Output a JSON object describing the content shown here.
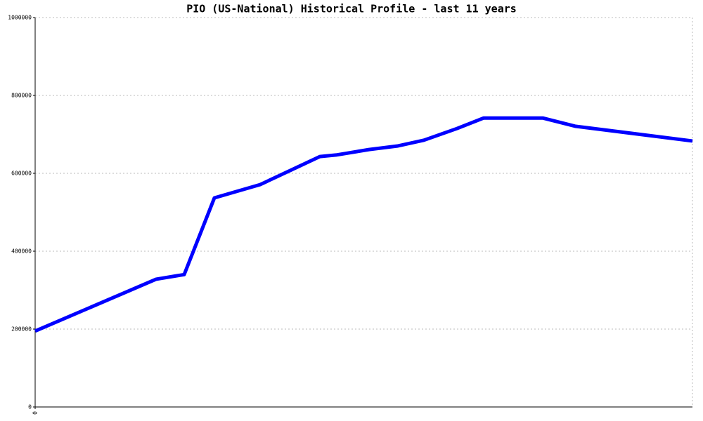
{
  "chart_data": {
    "type": "line",
    "title": "PIO (US-National) Historical Profile - last 11 years",
    "x": [
      0,
      172,
      212,
      255,
      320,
      405,
      428,
      475,
      515,
      553,
      600,
      638,
      722,
      768,
      935
    ],
    "series": [
      {
        "color": "#0000ff",
        "values": [
          195000,
          328000,
          340000,
          537000,
          571000,
          643000,
          647000,
          661000,
          670000,
          685000,
          715000,
          742000,
          742000,
          721000,
          683000
        ]
      }
    ],
    "xlim": [
      0,
      935
    ],
    "xticks": [
      0
    ],
    "ylim": [
      0,
      1000000
    ],
    "yticks": [
      0,
      200000,
      400000,
      600000,
      800000,
      1000000
    ],
    "grid": true
  }
}
